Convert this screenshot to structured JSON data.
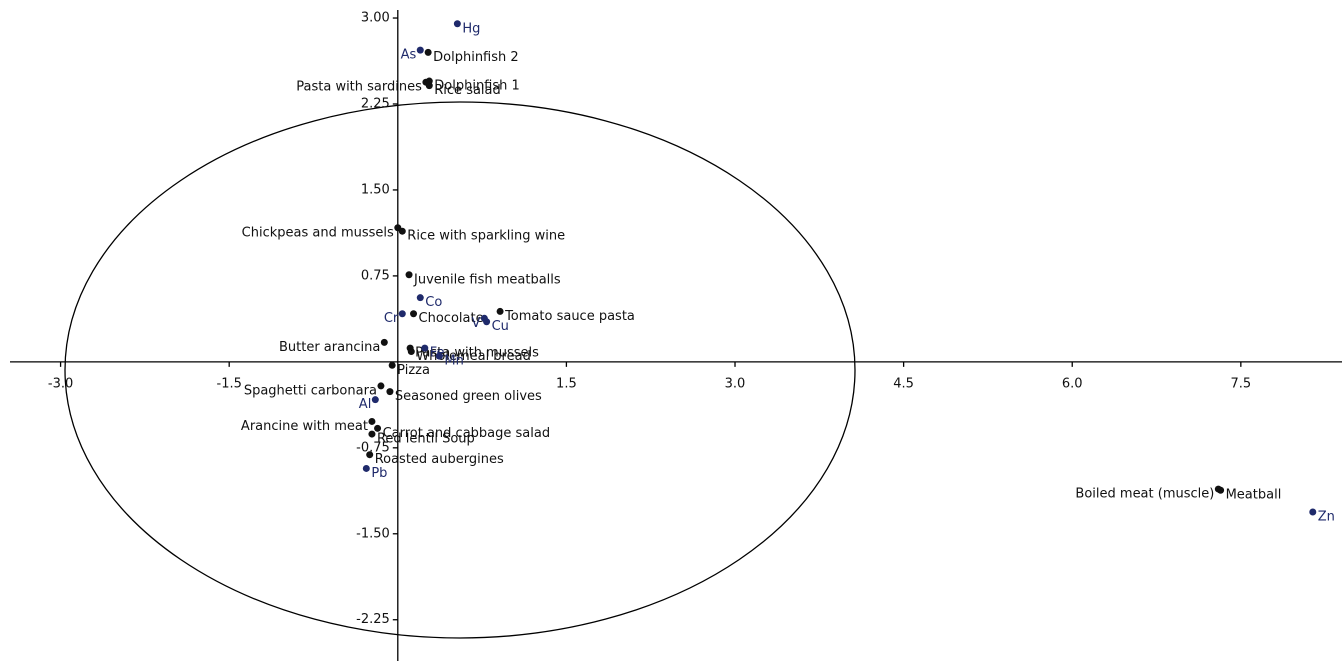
{
  "chart_data": {
    "type": "scatter",
    "xlim": [
      -3.45,
      8.4
    ],
    "ylim": [
      -2.61,
      3.07
    ],
    "xticks": [
      {
        "value": -3.0,
        "label": "-3.0"
      },
      {
        "value": -1.5,
        "label": "-1.5"
      },
      {
        "value": 1.5,
        "label": "1.5"
      },
      {
        "value": 3.0,
        "label": "3.0"
      },
      {
        "value": 4.5,
        "label": "4.5"
      },
      {
        "value": 6.0,
        "label": "6.0"
      },
      {
        "value": 7.5,
        "label": "7.5"
      }
    ],
    "yticks": [
      {
        "value": 3.0,
        "label": "3.00"
      },
      {
        "value": 2.25,
        "label": "2.25"
      },
      {
        "value": 1.5,
        "label": "1.50"
      },
      {
        "value": 0.75,
        "label": "0.75"
      },
      {
        "value": -0.75,
        "label": "-0.75"
      },
      {
        "value": -1.5,
        "label": "-1.50"
      },
      {
        "value": -2.25,
        "label": "-2.25"
      }
    ],
    "series": [
      {
        "color": "#111111",
        "labels": [
          "Dolphinfish 2",
          "Pasta with sardines",
          "Dolphinfish 1",
          "Rice salad",
          "Chickpeas and mussels",
          "Rice with sparkling wine",
          "Juvenile fish meatballs",
          "Tomato sauce pasta",
          "Chocolate",
          "Butter arancina",
          "Pasta with mussels",
          "Wholemeal bread",
          "Pizza",
          "Spaghetti carbonara",
          "Seasoned green olives",
          "Arancine with meat",
          "Carrot and cabbage salad",
          "Red lentil Soup",
          "Roasted aubergines",
          "Boiled meat (muscle)",
          "Meatball"
        ],
        "x": [
          0.27,
          0.25,
          0.28,
          0.28,
          0.0,
          0.04,
          0.1,
          0.91,
          0.14,
          -0.12,
          0.11,
          0.12,
          -0.05,
          -0.15,
          -0.07,
          -0.23,
          -0.18,
          -0.23,
          -0.25,
          7.3,
          7.32
        ],
        "y": [
          2.7,
          2.44,
          2.45,
          2.41,
          1.17,
          1.14,
          0.76,
          0.44,
          0.42,
          0.17,
          0.12,
          0.09,
          -0.03,
          -0.21,
          -0.26,
          -0.52,
          -0.58,
          -0.63,
          -0.81,
          -1.11,
          -1.12
        ]
      },
      {
        "color": "#1f2a6b",
        "labels": [
          "Hg",
          "As",
          "Co",
          "Cr",
          "V",
          "Cu",
          "Fe",
          "Mn",
          "Al",
          "Pb",
          "Zn"
        ],
        "x": [
          0.53,
          0.2,
          0.2,
          0.04,
          0.77,
          0.79,
          0.24,
          0.37,
          -0.2,
          -0.28,
          8.14
        ],
        "y": [
          2.95,
          2.72,
          0.56,
          0.42,
          0.38,
          0.35,
          0.12,
          0.05,
          -0.33,
          -0.93,
          -1.31
        ]
      }
    ]
  }
}
